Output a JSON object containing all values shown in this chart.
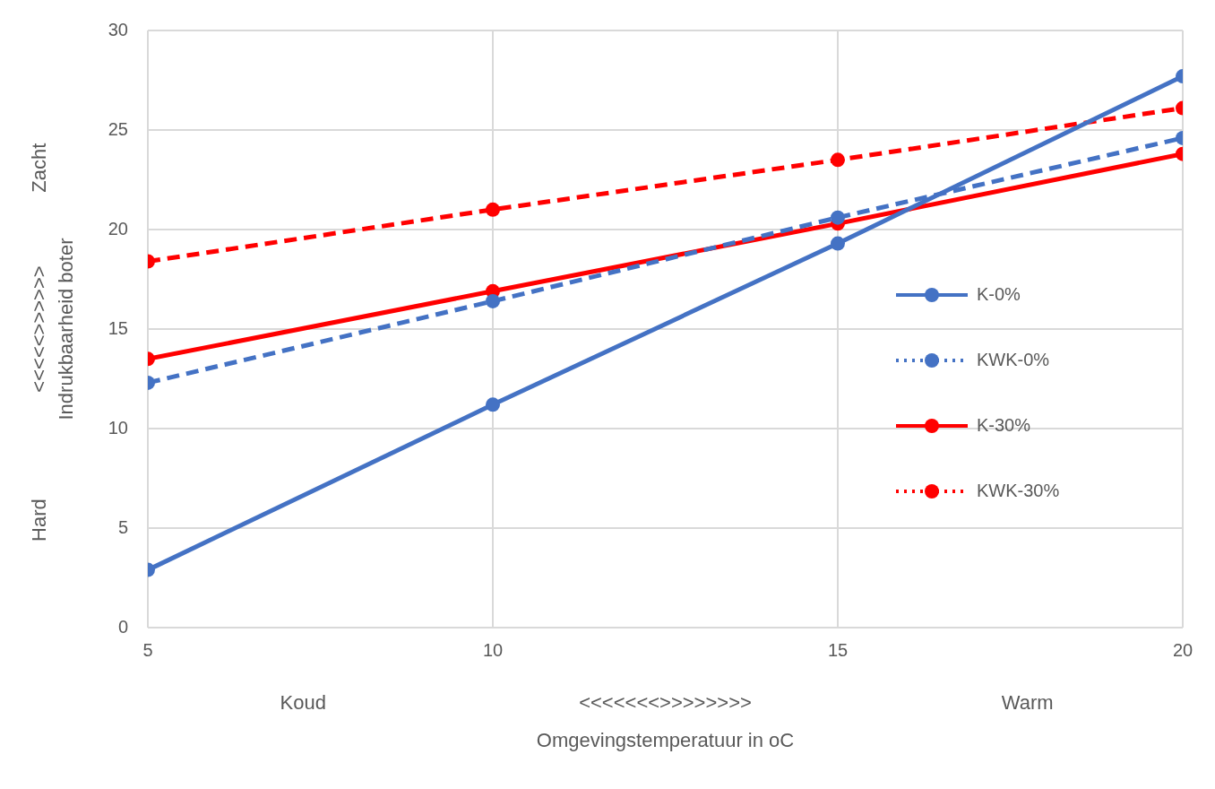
{
  "chart_data": {
    "type": "line",
    "xlabel": "Omgevingstemperatuur in oC",
    "ylabel": "Indrukbaarheid boter",
    "x": [
      5,
      10,
      15,
      20
    ],
    "xlim": [
      5,
      20
    ],
    "xticks": [
      5,
      10,
      15,
      20
    ],
    "ylim": [
      0,
      30
    ],
    "yticks": [
      0,
      5,
      10,
      15,
      20,
      25,
      30
    ],
    "grid": true,
    "legend": "right",
    "marker": "circle",
    "annotations": [
      "Koud",
      "<<<<<<<>>>>>>>>",
      "Warm",
      "Hard",
      "<<<<<>>>>>>",
      "Zacht"
    ],
    "series": [
      {
        "name": "K-0%",
        "color": "#4472c4",
        "line_style": "solid",
        "values": [
          2.9,
          11.2,
          19.3,
          27.7
        ]
      },
      {
        "name": "KWK-0%",
        "color": "#4472c4",
        "line_style": "dashed",
        "values": [
          12.3,
          16.4,
          20.6,
          24.6
        ]
      },
      {
        "name": "K-30%",
        "color": "#ff0000",
        "line_style": "solid",
        "values": [
          13.5,
          16.9,
          20.3,
          23.8
        ]
      },
      {
        "name": "KWK-30%",
        "color": "#ff0000",
        "line_style": "dashed",
        "values": [
          18.4,
          21.0,
          23.5,
          26.1
        ]
      }
    ]
  }
}
